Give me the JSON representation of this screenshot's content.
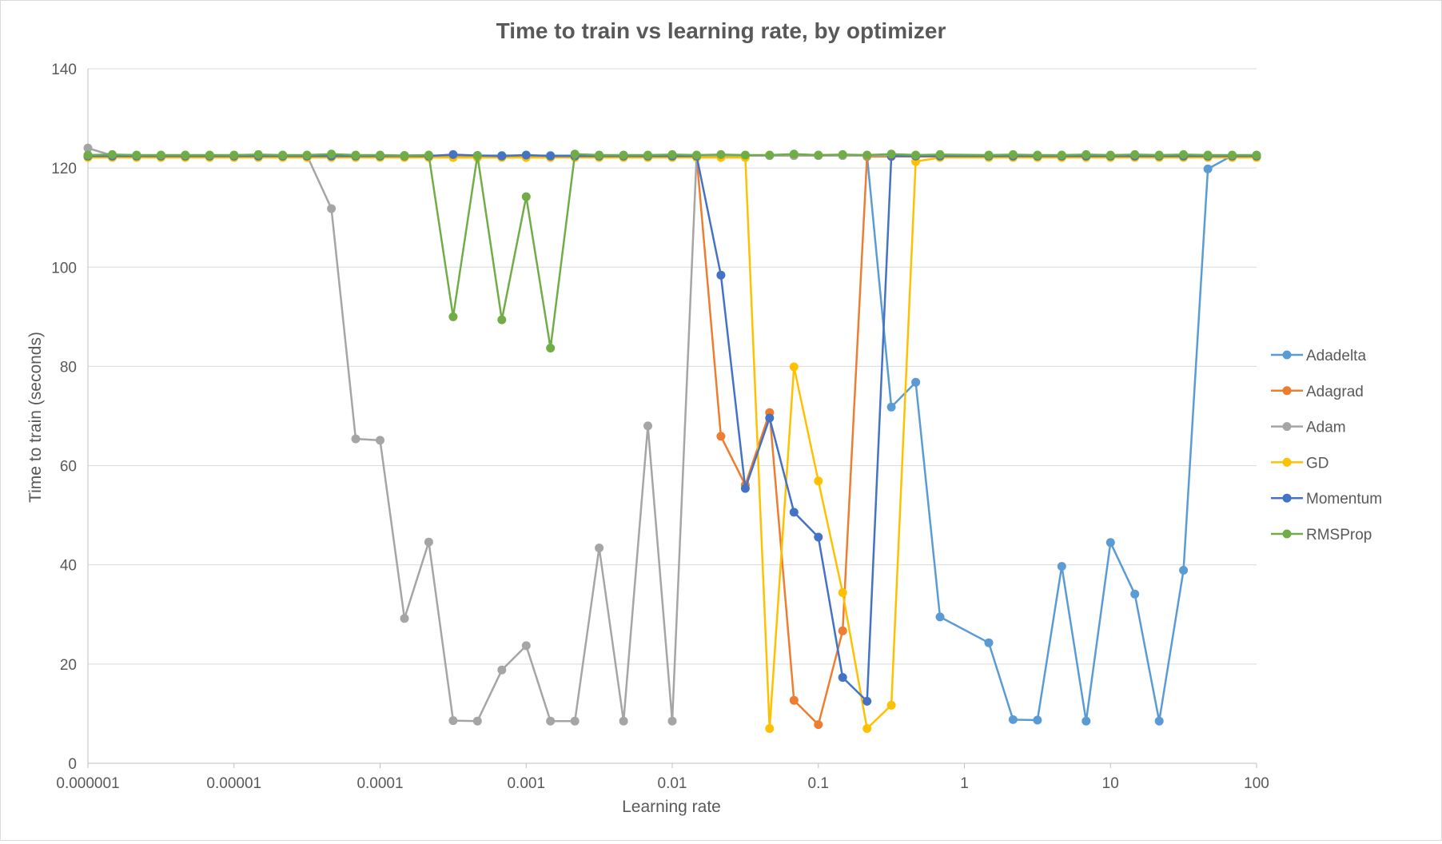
{
  "chart_data": {
    "type": "line",
    "title": "Time to train vs learning rate, by optimizer",
    "xlabel": "Learning rate",
    "ylabel": "Time to train (seconds)",
    "x_scale": "log",
    "xlim": [
      1e-06,
      100
    ],
    "ylim": [
      0,
      140
    ],
    "x_tick_values": [
      1e-06,
      1e-05,
      0.0001,
      0.001,
      0.01,
      0.1,
      1,
      10,
      100
    ],
    "x_tick_labels": [
      "0.000001",
      "0.00001",
      "0.0001",
      "0.001",
      "0.01",
      "0.1",
      "1",
      "10",
      "100"
    ],
    "y_tick_values": [
      0,
      20,
      40,
      60,
      80,
      100,
      120,
      140
    ],
    "y_tick_labels": [
      "0",
      "20",
      "40",
      "60",
      "80",
      "100",
      "120",
      "140"
    ],
    "grid": "horizontal",
    "legend_position": "right",
    "x": [
      1e-06,
      1.468e-06,
      2.154e-06,
      3.162e-06,
      4.642e-06,
      6.813e-06,
      1e-05,
      1.468e-05,
      2.154e-05,
      3.162e-05,
      4.642e-05,
      6.813e-05,
      0.0001,
      0.0001468,
      0.0002154,
      0.0003162,
      0.0004642,
      0.0006813,
      0.001,
      0.001468,
      0.002154,
      0.003162,
      0.004642,
      0.006813,
      0.01,
      0.01468,
      0.02154,
      0.03162,
      0.04642,
      0.06813,
      0.1,
      0.1468,
      0.2154,
      0.3162,
      0.4642,
      0.6813,
      1.468,
      2.154,
      3.162,
      4.642,
      6.813,
      10,
      14.68,
      21.54,
      31.62,
      46.42,
      68.13,
      100
    ],
    "series": [
      {
        "name": "Adadelta",
        "color": "#5b9bd5",
        "values": [
          122.5,
          122.5,
          122.5,
          122.5,
          122.5,
          122.5,
          122.5,
          122.5,
          122.5,
          122.5,
          122.5,
          122.5,
          122.5,
          122.5,
          122.5,
          122.5,
          122.5,
          122.5,
          122.5,
          122.5,
          122.5,
          122.5,
          122.5,
          122.5,
          122.5,
          122.5,
          122.5,
          122.5,
          122.5,
          122.5,
          122.5,
          122.5,
          122.5,
          71.8,
          76.8,
          29.5,
          24.3,
          8.8,
          8.7,
          39.7,
          8.5,
          44.5,
          34.1,
          8.5,
          38.9,
          119.8,
          122.5,
          122.5
        ]
      },
      {
        "name": "Adagrad",
        "color": "#ed7d31",
        "values": [
          122.3,
          122.3,
          122.3,
          122.3,
          122.3,
          122.3,
          122.3,
          122.3,
          122.3,
          122.3,
          122.3,
          122.3,
          122.3,
          122.3,
          122.3,
          122.3,
          122.3,
          122.3,
          122.3,
          122.3,
          122.3,
          122.3,
          122.3,
          122.3,
          122.3,
          122.3,
          65.9,
          56.1,
          70.7,
          12.7,
          7.8,
          26.7,
          122.3,
          122.3,
          122.3,
          122.3,
          122.3,
          122.3,
          122.3,
          122.3,
          122.3,
          122.3,
          122.3,
          122.3,
          122.3,
          122.3,
          122.3,
          122.3
        ]
      },
      {
        "name": "Adam",
        "color": "#a5a5a5",
        "values": [
          124.0,
          122.5,
          122.5,
          122.5,
          122.5,
          122.5,
          122.5,
          122.5,
          122.5,
          122.5,
          111.8,
          65.4,
          65.1,
          29.2,
          44.6,
          8.6,
          8.5,
          18.8,
          23.7,
          8.5,
          8.5,
          43.4,
          8.5,
          68.0,
          8.5,
          122.5,
          122.5,
          122.5,
          122.5,
          122.5,
          122.5,
          122.5,
          122.5,
          122.5,
          122.5,
          122.5,
          122.5,
          122.5,
          122.5,
          122.5,
          122.5,
          122.5,
          122.5,
          122.5,
          122.5,
          122.5,
          122.5,
          122.5
        ]
      },
      {
        "name": "GD",
        "color": "#ffc000",
        "values": [
          122.1,
          122.1,
          122.1,
          122.1,
          122.1,
          122.1,
          122.1,
          122.1,
          122.1,
          122.1,
          122.1,
          122.1,
          122.1,
          122.1,
          122.1,
          122.1,
          122.1,
          122.1,
          122.1,
          122.1,
          122.1,
          122.1,
          122.1,
          122.1,
          122.1,
          122.1,
          122.1,
          122.1,
          7.0,
          79.9,
          56.9,
          34.4,
          7.0,
          11.7,
          121.3,
          122.1,
          122.1,
          122.1,
          122.1,
          122.1,
          122.1,
          122.1,
          122.1,
          122.1,
          122.1,
          122.1,
          122.1,
          122.1
        ]
      },
      {
        "name": "Momentum",
        "color": "#4472c4",
        "values": [
          122.4,
          122.4,
          122.4,
          122.4,
          122.4,
          122.4,
          122.4,
          122.4,
          122.4,
          122.4,
          122.4,
          122.4,
          122.4,
          122.4,
          122.4,
          122.7,
          122.5,
          122.4,
          122.6,
          122.4,
          122.4,
          122.4,
          122.4,
          122.4,
          122.4,
          122.4,
          98.4,
          55.4,
          69.6,
          50.6,
          45.6,
          17.3,
          12.5,
          122.4,
          122.4,
          122.4,
          122.4,
          122.4,
          122.4,
          122.4,
          122.4,
          122.4,
          122.4,
          122.4,
          122.4,
          122.4,
          122.4,
          122.4
        ]
      },
      {
        "name": "RMSProp",
        "color": "#70ad47",
        "values": [
          122.6,
          122.7,
          122.6,
          122.6,
          122.6,
          122.6,
          122.6,
          122.7,
          122.6,
          122.6,
          122.8,
          122.6,
          122.6,
          122.5,
          122.6,
          90.0,
          122.5,
          89.4,
          114.2,
          83.7,
          122.8,
          122.6,
          122.6,
          122.6,
          122.7,
          122.6,
          122.7,
          122.6,
          122.6,
          122.8,
          122.6,
          122.7,
          122.6,
          122.8,
          122.6,
          122.7,
          122.6,
          122.7,
          122.6,
          122.6,
          122.7,
          122.6,
          122.7,
          122.6,
          122.7,
          122.6,
          122.6,
          122.6
        ]
      }
    ]
  }
}
